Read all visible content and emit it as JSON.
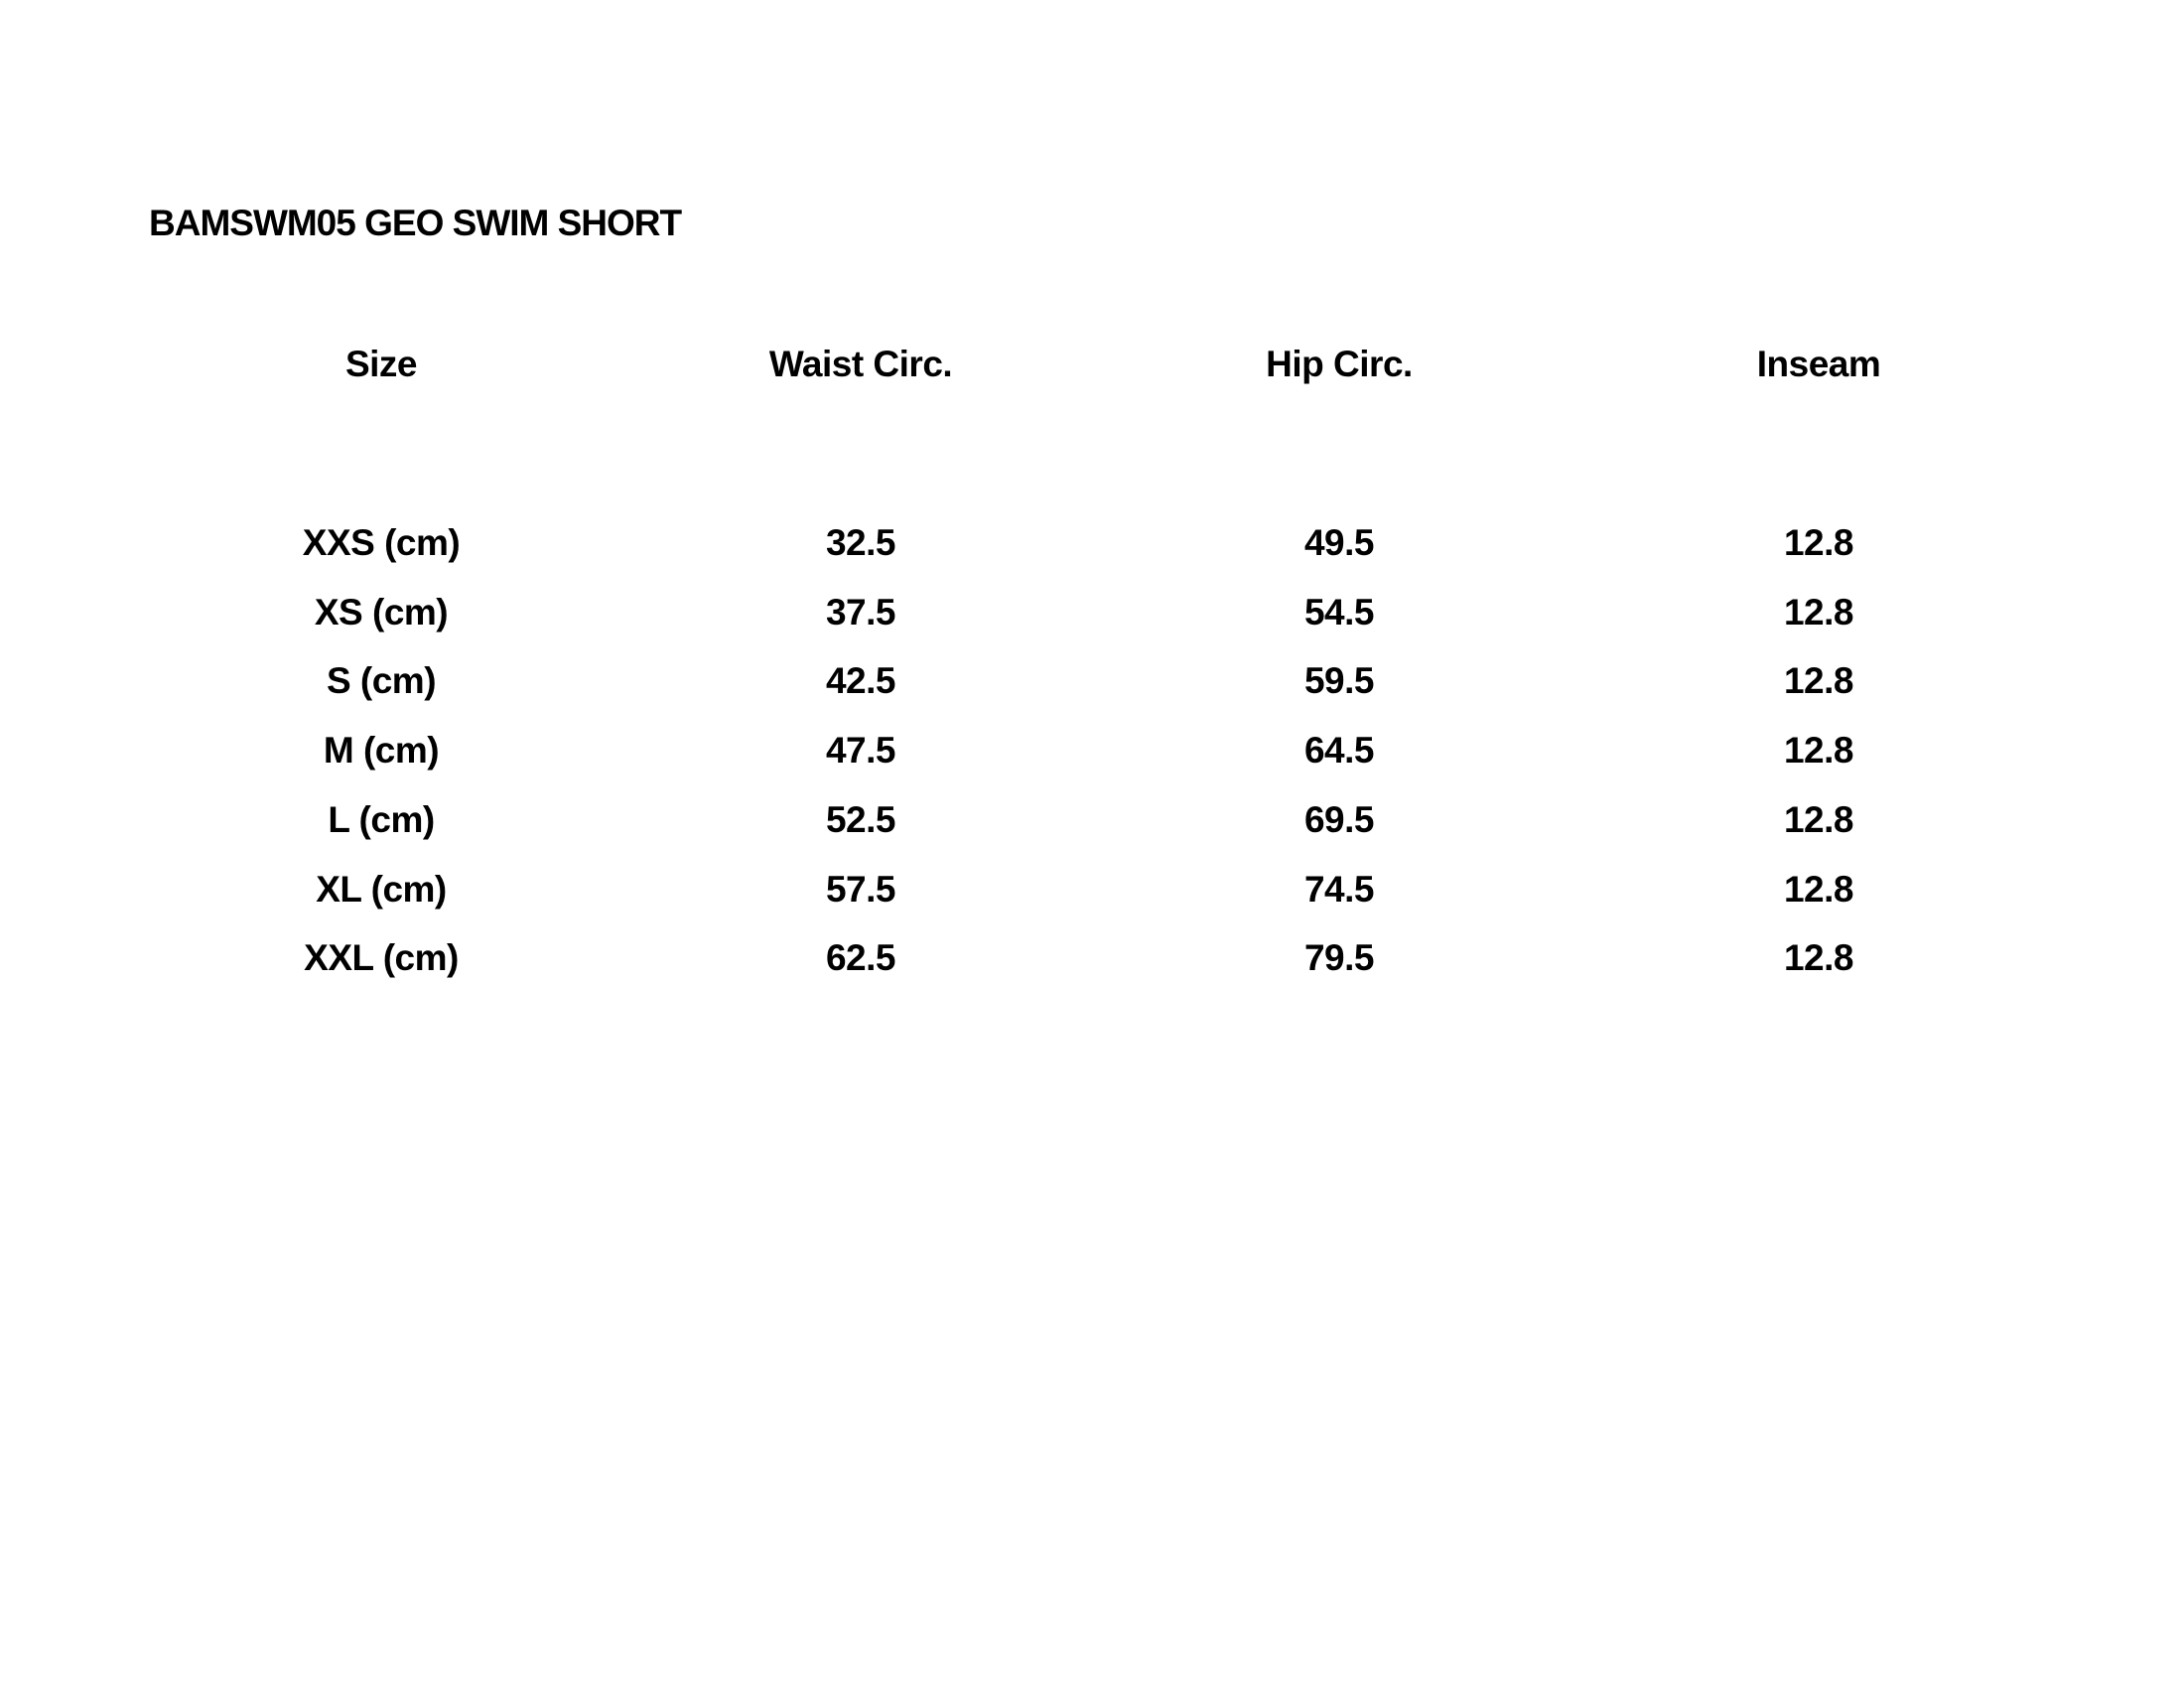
{
  "title": "BAMSWM05 GEO SWIM SHORT",
  "table": {
    "headers": [
      "Size",
      "Waist Circ.",
      "Hip Circ.",
      "Inseam"
    ],
    "rows": [
      [
        "XXS (cm)",
        "32.5",
        "49.5",
        "12.8"
      ],
      [
        "XS (cm)",
        "37.5",
        "54.5",
        "12.8"
      ],
      [
        "S (cm)",
        "42.5",
        "59.5",
        "12.8"
      ],
      [
        "M (cm)",
        "47.5",
        "64.5",
        "12.8"
      ],
      [
        "L (cm)",
        "52.5",
        "69.5",
        "12.8"
      ],
      [
        "XL (cm)",
        "57.5",
        "74.5",
        "12.8"
      ],
      [
        "XXL (cm)",
        "62.5",
        "79.5",
        "12.8"
      ]
    ]
  }
}
